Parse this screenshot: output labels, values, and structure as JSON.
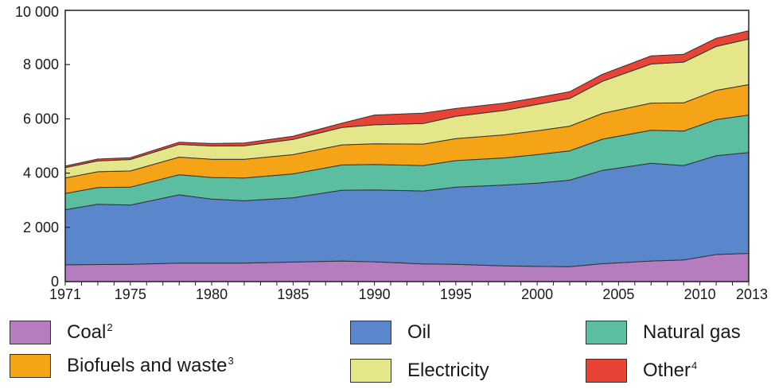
{
  "chart_data": {
    "type": "area",
    "stacked": true,
    "x": [
      1971,
      1973,
      1975,
      1978,
      1980,
      1982,
      1985,
      1988,
      1990,
      1993,
      1995,
      1998,
      2000,
      2002,
      2004,
      2007,
      2009,
      2011,
      2013
    ],
    "x_tick_labels": [
      "1971",
      "1975",
      "1980",
      "1985",
      "1990",
      "1995",
      "2000",
      "2005",
      "2010",
      "2013"
    ],
    "y_tick_labels": [
      "0",
      "2 000",
      "4 000",
      "6 000",
      "8 000",
      "10 000"
    ],
    "ylim": [
      0,
      10000
    ],
    "xlim": [
      1971,
      2013
    ],
    "grid": false,
    "legend_position": "bottom",
    "series": [
      {
        "key": "coal",
        "name": "Coal",
        "footnote": "2",
        "color": "#b57cc0",
        "values": [
          620,
          630,
          640,
          680,
          680,
          680,
          720,
          760,
          730,
          650,
          640,
          580,
          560,
          550,
          660,
          760,
          800,
          1000,
          1040
        ]
      },
      {
        "key": "oil",
        "name": "Oil",
        "footnote": "",
        "color": "#5a87cc",
        "values": [
          2030,
          2220,
          2180,
          2520,
          2360,
          2300,
          2370,
          2610,
          2650,
          2690,
          2840,
          2980,
          3070,
          3190,
          3440,
          3600,
          3480,
          3640,
          3720
        ]
      },
      {
        "key": "natural_gas",
        "name": "Natural gas",
        "footnote": "",
        "color": "#5cbea0",
        "values": [
          600,
          620,
          660,
          740,
          800,
          840,
          880,
          930,
          940,
          940,
          980,
          1000,
          1050,
          1080,
          1150,
          1220,
          1270,
          1330,
          1380
        ]
      },
      {
        "key": "biofuels",
        "name": "Biofuels and waste",
        "footnote": "3",
        "color": "#f5a418",
        "values": [
          570,
          580,
          600,
          650,
          670,
          690,
          710,
          740,
          760,
          790,
          810,
          850,
          880,
          910,
          950,
          1000,
          1040,
          1080,
          1120
        ]
      },
      {
        "key": "electricity",
        "name": "Electricity",
        "footnote": "",
        "color": "#e5e58a",
        "values": [
          380,
          400,
          420,
          470,
          490,
          500,
          560,
          640,
          700,
          760,
          820,
          900,
          970,
          1020,
          1180,
          1440,
          1500,
          1620,
          1680
        ]
      },
      {
        "key": "other",
        "name": "Other",
        "footnote": "4",
        "color": "#e64436",
        "values": [
          60,
          70,
          70,
          80,
          90,
          100,
          120,
          160,
          360,
          380,
          290,
          270,
          250,
          250,
          260,
          300,
          290,
          300,
          310
        ]
      }
    ]
  }
}
